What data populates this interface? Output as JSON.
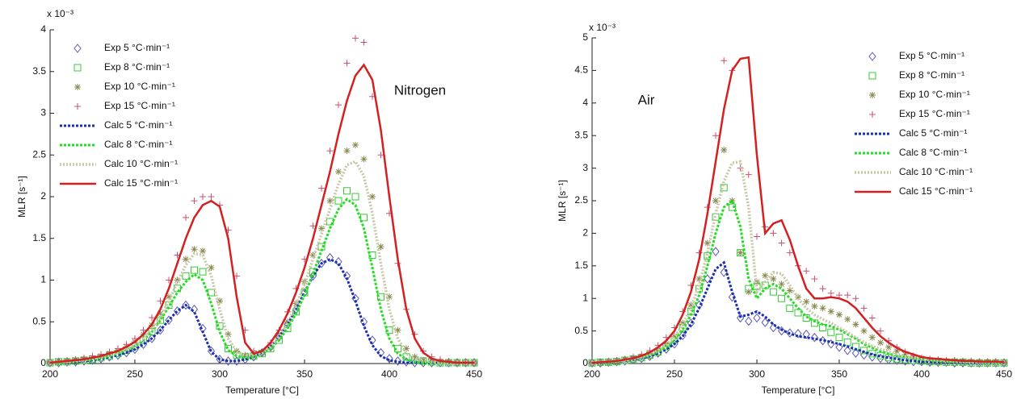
{
  "chart_data": [
    {
      "type": "line",
      "annotation": "Nitrogen",
      "scale_label": "x 10⁻³",
      "xlabel": "Temperature [°C]",
      "ylabel": "MLR [s⁻¹]",
      "xlim": [
        200,
        450
      ],
      "ylim": [
        0,
        4
      ],
      "xticks": [
        200,
        250,
        300,
        350,
        400,
        450
      ],
      "yticks": [
        0,
        0.5,
        1,
        1.5,
        2,
        2.5,
        3,
        3.5,
        4
      ],
      "grid": false,
      "legend": "upper left",
      "x": [
        200,
        205,
        210,
        215,
        220,
        225,
        230,
        235,
        240,
        245,
        250,
        255,
        260,
        265,
        270,
        275,
        280,
        285,
        290,
        295,
        300,
        305,
        310,
        315,
        320,
        325,
        330,
        335,
        340,
        345,
        350,
        355,
        360,
        365,
        370,
        375,
        380,
        385,
        390,
        395,
        400,
        405,
        410,
        415,
        420,
        425,
        430,
        435,
        440,
        445,
        450
      ],
      "series": [
        {
          "name": "Exp 5 °C·min⁻¹",
          "color": "#5a5ab4",
          "marker": "diamond",
          "values": [
            0.01,
            0.01,
            0.02,
            0.02,
            0.03,
            0.04,
            0.06,
            0.08,
            0.1,
            0.13,
            0.17,
            0.23,
            0.3,
            0.4,
            0.52,
            0.63,
            0.7,
            0.65,
            0.42,
            0.15,
            0.05,
            0.03,
            0.03,
            0.05,
            0.08,
            0.13,
            0.2,
            0.32,
            0.47,
            0.65,
            0.85,
            1.05,
            1.2,
            1.27,
            1.22,
            1.05,
            0.78,
            0.5,
            0.28,
            0.13,
            0.06,
            0.03,
            0.02,
            0.01,
            0.01,
            0.01,
            0.01,
            0.01,
            0.01,
            0.01,
            0.01
          ]
        },
        {
          "name": "Exp 8 °C·min⁻¹",
          "color": "#33cc33",
          "marker": "square",
          "values": [
            0.01,
            0.02,
            0.02,
            0.03,
            0.04,
            0.05,
            0.07,
            0.09,
            0.12,
            0.16,
            0.21,
            0.28,
            0.38,
            0.52,
            0.7,
            0.9,
            1.05,
            1.12,
            1.1,
            0.85,
            0.45,
            0.18,
            0.1,
            0.08,
            0.09,
            0.12,
            0.18,
            0.28,
            0.42,
            0.62,
            0.85,
            1.1,
            1.4,
            1.7,
            1.95,
            2.07,
            2.0,
            1.75,
            1.3,
            0.8,
            0.4,
            0.18,
            0.08,
            0.04,
            0.03,
            0.02,
            0.01,
            0.01,
            0.01,
            0.01,
            0.01
          ]
        },
        {
          "name": "Exp 10 °C·min⁻¹",
          "color": "#8a8a50",
          "marker": "asterisk",
          "values": [
            0.01,
            0.02,
            0.03,
            0.04,
            0.05,
            0.07,
            0.09,
            0.12,
            0.15,
            0.2,
            0.26,
            0.35,
            0.46,
            0.6,
            0.8,
            1.0,
            1.25,
            1.37,
            1.35,
            1.15,
            0.75,
            0.35,
            0.15,
            0.1,
            0.1,
            0.13,
            0.2,
            0.32,
            0.5,
            0.72,
            0.98,
            1.3,
            1.62,
            1.95,
            2.3,
            2.55,
            2.62,
            2.45,
            2.0,
            1.4,
            0.8,
            0.4,
            0.18,
            0.08,
            0.04,
            0.03,
            0.02,
            0.02,
            0.01,
            0.01,
            0.01
          ]
        },
        {
          "name": "Exp 15 °C·min⁻¹",
          "color": "#c8506e",
          "marker": "plus",
          "values": [
            0.02,
            0.03,
            0.04,
            0.05,
            0.07,
            0.09,
            0.11,
            0.14,
            0.18,
            0.23,
            0.3,
            0.4,
            0.55,
            0.75,
            1.0,
            1.3,
            1.75,
            1.95,
            2.0,
            2.0,
            1.9,
            1.6,
            1.05,
            0.4,
            0.15,
            0.14,
            0.25,
            0.4,
            0.62,
            0.9,
            1.25,
            1.65,
            2.1,
            2.55,
            3.1,
            3.6,
            3.9,
            3.85,
            3.2,
            2.5,
            1.8,
            1.2,
            0.65,
            0.35,
            0.15,
            0.08,
            0.05,
            0.03,
            0.02,
            0.02,
            0.01
          ]
        },
        {
          "name": "Calc 5 °C·min⁻¹",
          "color": "#1a2fb0",
          "line": "dashed",
          "values": [
            0.01,
            0.01,
            0.02,
            0.02,
            0.03,
            0.04,
            0.06,
            0.08,
            0.1,
            0.13,
            0.17,
            0.23,
            0.3,
            0.4,
            0.52,
            0.63,
            0.7,
            0.62,
            0.38,
            0.14,
            0.05,
            0.03,
            0.03,
            0.05,
            0.08,
            0.13,
            0.2,
            0.32,
            0.47,
            0.65,
            0.85,
            1.05,
            1.2,
            1.25,
            1.2,
            1.02,
            0.75,
            0.45,
            0.22,
            0.09,
            0.04,
            0.02,
            0.01,
            0.01,
            0.01,
            0.01,
            0.01,
            0.01,
            0.01,
            0.01,
            0.01
          ]
        },
        {
          "name": "Calc 8 °C·min⁻¹",
          "color": "#22dd22",
          "line": "dashed",
          "values": [
            0.01,
            0.01,
            0.02,
            0.03,
            0.04,
            0.05,
            0.07,
            0.09,
            0.12,
            0.16,
            0.21,
            0.28,
            0.38,
            0.52,
            0.68,
            0.85,
            0.98,
            1.07,
            1.0,
            0.72,
            0.38,
            0.16,
            0.09,
            0.07,
            0.08,
            0.12,
            0.18,
            0.28,
            0.42,
            0.6,
            0.82,
            1.08,
            1.35,
            1.62,
            1.85,
            1.97,
            1.9,
            1.62,
            1.15,
            0.65,
            0.3,
            0.12,
            0.05,
            0.02,
            0.01,
            0.01,
            0.01,
            0.01,
            0.01,
            0.01,
            0.01
          ]
        },
        {
          "name": "Calc 10 °C·min⁻¹",
          "color": "#c8c8a8",
          "line": "dotted",
          "values": [
            0.01,
            0.02,
            0.02,
            0.03,
            0.04,
            0.06,
            0.08,
            0.1,
            0.13,
            0.17,
            0.22,
            0.3,
            0.4,
            0.55,
            0.75,
            0.97,
            1.18,
            1.32,
            1.3,
            1.05,
            0.65,
            0.3,
            0.14,
            0.1,
            0.1,
            0.13,
            0.2,
            0.32,
            0.48,
            0.7,
            0.95,
            1.25,
            1.55,
            1.85,
            2.15,
            2.38,
            2.42,
            2.25,
            1.8,
            1.2,
            0.65,
            0.3,
            0.12,
            0.05,
            0.03,
            0.02,
            0.01,
            0.01,
            0.01,
            0.01,
            0.01
          ]
        },
        {
          "name": "Calc 15 °C·min⁻¹",
          "color": "#d42020",
          "line": "solid",
          "values": [
            0.01,
            0.02,
            0.03,
            0.04,
            0.05,
            0.07,
            0.09,
            0.12,
            0.15,
            0.2,
            0.26,
            0.35,
            0.47,
            0.65,
            0.9,
            1.2,
            1.5,
            1.75,
            1.9,
            1.95,
            1.88,
            1.5,
            0.8,
            0.25,
            0.12,
            0.15,
            0.25,
            0.4,
            0.6,
            0.85,
            1.15,
            1.5,
            1.9,
            2.3,
            2.75,
            3.15,
            3.45,
            3.58,
            3.4,
            2.8,
            2.0,
            1.25,
            0.65,
            0.3,
            0.13,
            0.06,
            0.03,
            0.02,
            0.01,
            0.01,
            0.01
          ]
        }
      ]
    },
    {
      "type": "line",
      "annotation": "Air",
      "scale_label": "x 10⁻³",
      "xlabel": "Temperature [°C]",
      "ylabel": "MLR [s⁻¹]",
      "xlim": [
        200,
        450
      ],
      "ylim": [
        0,
        5
      ],
      "xticks": [
        200,
        250,
        300,
        350,
        400,
        450
      ],
      "yticks": [
        0,
        0.5,
        1,
        1.5,
        2,
        2.5,
        3,
        3.5,
        4,
        4.5,
        5
      ],
      "grid": false,
      "legend": "upper right",
      "x": [
        200,
        205,
        210,
        215,
        220,
        225,
        230,
        235,
        240,
        245,
        250,
        255,
        260,
        265,
        270,
        275,
        280,
        285,
        290,
        295,
        300,
        305,
        310,
        315,
        320,
        325,
        330,
        335,
        340,
        345,
        350,
        355,
        360,
        365,
        370,
        375,
        380,
        385,
        390,
        395,
        400,
        405,
        410,
        415,
        420,
        425,
        430,
        435,
        440,
        445,
        450
      ],
      "series": [
        {
          "name": "Exp 5 °C·min⁻¹",
          "color": "#5a5ab4",
          "marker": "diamond",
          "values": [
            0.01,
            0.01,
            0.02,
            0.03,
            0.04,
            0.06,
            0.08,
            0.11,
            0.16,
            0.22,
            0.3,
            0.43,
            0.62,
            0.9,
            1.3,
            1.72,
            1.4,
            1.02,
            0.7,
            0.65,
            0.7,
            0.63,
            0.55,
            0.5,
            0.47,
            0.46,
            0.45,
            0.4,
            0.35,
            0.3,
            0.25,
            0.2,
            0.16,
            0.13,
            0.1,
            0.08,
            0.06,
            0.05,
            0.04,
            0.03,
            0.03,
            0.02,
            0.02,
            0.02,
            0.01,
            0.01,
            0.01,
            0.01,
            0.01,
            0.01,
            0.01
          ]
        },
        {
          "name": "Exp 8 °C·min⁻¹",
          "color": "#33cc33",
          "marker": "square",
          "values": [
            0.01,
            0.02,
            0.02,
            0.03,
            0.05,
            0.07,
            0.09,
            0.13,
            0.18,
            0.26,
            0.37,
            0.55,
            0.8,
            1.15,
            1.65,
            2.25,
            2.7,
            2.4,
            1.7,
            1.15,
            1.18,
            1.2,
            1.1,
            1.0,
            0.85,
            0.78,
            0.7,
            0.62,
            0.55,
            0.48,
            0.4,
            0.33,
            0.26,
            0.2,
            0.15,
            0.12,
            0.09,
            0.07,
            0.06,
            0.05,
            0.04,
            0.03,
            0.03,
            0.02,
            0.02,
            0.02,
            0.01,
            0.01,
            0.01,
            0.01,
            0.01
          ]
        },
        {
          "name": "Exp 10 °C·min⁻¹",
          "color": "#8a8a50",
          "marker": "asterisk",
          "values": [
            0.01,
            0.02,
            0.03,
            0.04,
            0.06,
            0.08,
            0.11,
            0.15,
            0.21,
            0.3,
            0.42,
            0.62,
            0.9,
            1.3,
            1.85,
            2.5,
            3.28,
            2.5,
            1.7,
            1.1,
            1.25,
            1.35,
            1.3,
            1.22,
            1.12,
            1.02,
            0.95,
            0.88,
            0.85,
            0.8,
            0.75,
            0.68,
            0.6,
            0.5,
            0.4,
            0.32,
            0.25,
            0.19,
            0.14,
            0.1,
            0.08,
            0.06,
            0.05,
            0.04,
            0.04,
            0.03,
            0.03,
            0.02,
            0.02,
            0.02,
            0.01
          ]
        },
        {
          "name": "Exp 15 °C·min⁻¹",
          "color": "#c8506e",
          "marker": "plus",
          "values": [
            0.02,
            0.03,
            0.04,
            0.05,
            0.07,
            0.1,
            0.14,
            0.2,
            0.28,
            0.4,
            0.55,
            0.8,
            1.2,
            1.7,
            2.4,
            3.5,
            4.65,
            4.5,
            3.0,
            2.9,
            1.95,
            2.1,
            2.0,
            1.85,
            1.7,
            1.5,
            1.42,
            1.3,
            1.15,
            1.08,
            1.05,
            1.05,
            1.0,
            0.85,
            0.7,
            0.5,
            0.35,
            0.25,
            0.18,
            0.12,
            0.09,
            0.07,
            0.06,
            0.05,
            0.05,
            0.04,
            0.04,
            0.03,
            0.03,
            0.03,
            0.02
          ]
        },
        {
          "name": "Calc 5 °C·min⁻¹",
          "color": "#1a2fb0",
          "line": "dashed",
          "values": [
            0.01,
            0.01,
            0.02,
            0.03,
            0.04,
            0.06,
            0.08,
            0.11,
            0.16,
            0.22,
            0.3,
            0.42,
            0.6,
            0.85,
            1.15,
            1.45,
            1.55,
            1.1,
            0.72,
            0.75,
            0.8,
            0.72,
            0.6,
            0.52,
            0.46,
            0.42,
            0.4,
            0.38,
            0.36,
            0.33,
            0.3,
            0.26,
            0.22,
            0.18,
            0.14,
            0.11,
            0.09,
            0.07,
            0.05,
            0.04,
            0.03,
            0.03,
            0.02,
            0.02,
            0.02,
            0.01,
            0.01,
            0.01,
            0.01,
            0.01,
            0.01
          ]
        },
        {
          "name": "Calc 8 °C·min⁻¹",
          "color": "#22dd22",
          "line": "dashed",
          "values": [
            0.01,
            0.02,
            0.02,
            0.03,
            0.05,
            0.07,
            0.09,
            0.13,
            0.18,
            0.25,
            0.36,
            0.52,
            0.75,
            1.05,
            1.5,
            2.0,
            2.4,
            2.5,
            2.1,
            1.3,
            1.0,
            1.15,
            1.22,
            1.15,
            1.0,
            0.85,
            0.72,
            0.65,
            0.6,
            0.57,
            0.52,
            0.45,
            0.38,
            0.3,
            0.24,
            0.19,
            0.15,
            0.12,
            0.1,
            0.08,
            0.06,
            0.05,
            0.04,
            0.03,
            0.03,
            0.02,
            0.02,
            0.02,
            0.01,
            0.01,
            0.01
          ]
        },
        {
          "name": "Calc 10 °C·min⁻¹",
          "color": "#c8c8a8",
          "line": "dotted",
          "values": [
            0.01,
            0.02,
            0.03,
            0.04,
            0.05,
            0.07,
            0.1,
            0.14,
            0.2,
            0.28,
            0.4,
            0.6,
            0.85,
            1.2,
            1.7,
            2.3,
            2.8,
            3.08,
            3.1,
            2.4,
            1.1,
            1.25,
            1.4,
            1.38,
            1.2,
            1.0,
            0.85,
            0.75,
            0.68,
            0.62,
            0.55,
            0.48,
            0.4,
            0.33,
            0.27,
            0.22,
            0.18,
            0.14,
            0.11,
            0.09,
            0.07,
            0.06,
            0.05,
            0.04,
            0.03,
            0.03,
            0.02,
            0.02,
            0.02,
            0.02,
            0.01
          ]
        },
        {
          "name": "Calc 15 °C·min⁻¹",
          "color": "#d42020",
          "line": "solid",
          "values": [
            0.01,
            0.02,
            0.03,
            0.04,
            0.06,
            0.08,
            0.12,
            0.17,
            0.25,
            0.35,
            0.5,
            0.75,
            1.1,
            1.6,
            2.3,
            3.1,
            3.9,
            4.5,
            4.68,
            4.7,
            3.2,
            2.0,
            2.15,
            2.2,
            1.9,
            1.5,
            1.15,
            1.0,
            1.0,
            1.02,
            1.0,
            0.95,
            0.85,
            0.7,
            0.55,
            0.42,
            0.32,
            0.24,
            0.18,
            0.14,
            0.1,
            0.08,
            0.07,
            0.06,
            0.05,
            0.04,
            0.04,
            0.03,
            0.03,
            0.03,
            0.02
          ]
        }
      ]
    }
  ]
}
